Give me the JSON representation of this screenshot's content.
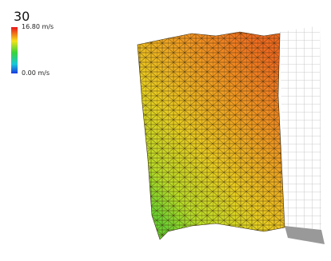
{
  "frame": "30",
  "legend": {
    "max_label": "16.80 m/s",
    "min_label": "0.00 m/s"
  }
}
